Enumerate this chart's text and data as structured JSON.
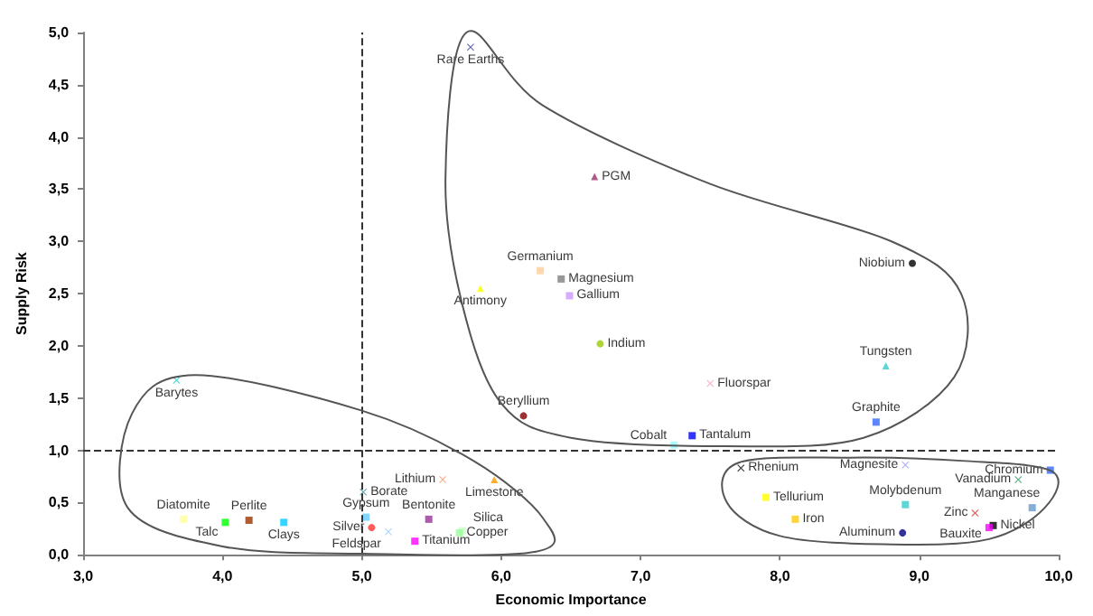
{
  "chart_data": {
    "type": "scatter",
    "xlabel": "Economic Importance",
    "ylabel": "Supply Risk",
    "xlim": [
      3,
      10
    ],
    "ylim": [
      0,
      5
    ],
    "xticks": [
      {
        "value": 3,
        "label": "3,0"
      },
      {
        "value": 4,
        "label": "4,0"
      },
      {
        "value": 5,
        "label": "5,0"
      },
      {
        "value": 6,
        "label": "6,0"
      },
      {
        "value": 7,
        "label": "7,0"
      },
      {
        "value": 8,
        "label": "8,0"
      },
      {
        "value": 9,
        "label": "9,0"
      },
      {
        "value": 10,
        "label": "10,0"
      }
    ],
    "yticks": [
      {
        "value": 0,
        "label": "0,0"
      },
      {
        "value": 0.5,
        "label": "0,5"
      },
      {
        "value": 1,
        "label": "1,0"
      },
      {
        "value": 1.5,
        "label": "1,5"
      },
      {
        "value": 2,
        "label": "2,0"
      },
      {
        "value": 2.5,
        "label": "2,5"
      },
      {
        "value": 3,
        "label": "3,0"
      },
      {
        "value": 3.5,
        "label": "3,5"
      },
      {
        "value": 4,
        "label": "4,0"
      },
      {
        "value": 4.5,
        "label": "4,5"
      },
      {
        "value": 5,
        "label": "5,0"
      }
    ],
    "grid": false,
    "legend": false,
    "ref_lines": [
      {
        "axis": "x",
        "value": 5,
        "line_style": "dashed",
        "color": "#333333"
      },
      {
        "axis": "y",
        "value": 1,
        "line_style": "dashed",
        "color": "#333333"
      }
    ],
    "series": [
      {
        "name": "Rare Earths",
        "color": "#4040a0",
        "marker": "cross",
        "x": [
          5.78
        ],
        "values": [
          4.86
        ]
      },
      {
        "name": "PGM",
        "color": "#993366",
        "marker": "triangle",
        "x": [
          6.67
        ],
        "values": [
          3.62
        ]
      },
      {
        "name": "Germanium",
        "color": "#ffcc99",
        "marker": "square",
        "x": [
          6.28
        ],
        "values": [
          2.72
        ]
      },
      {
        "name": "Magnesium",
        "color": "#808080",
        "marker": "square",
        "x": [
          6.43
        ],
        "values": [
          2.64
        ]
      },
      {
        "name": "Gallium",
        "color": "#cc99ff",
        "marker": "square",
        "x": [
          6.49
        ],
        "values": [
          2.48
        ]
      },
      {
        "name": "Antimony",
        "color": "#ffff00",
        "marker": "triangle",
        "x": [
          5.85
        ],
        "values": [
          2.55
        ]
      },
      {
        "name": "Niobium",
        "color": "#000000",
        "marker": "circle",
        "x": [
          8.95
        ],
        "values": [
          2.79
        ]
      },
      {
        "name": "Indium",
        "color": "#99cc00",
        "marker": "circle",
        "x": [
          6.71
        ],
        "values": [
          2.02
        ]
      },
      {
        "name": "Fluorspar",
        "color": "#ff99cc",
        "marker": "cross",
        "x": [
          7.5
        ],
        "values": [
          1.64
        ]
      },
      {
        "name": "Tungsten",
        "color": "#33cccc",
        "marker": "triangle",
        "x": [
          8.76
        ],
        "values": [
          1.81
        ]
      },
      {
        "name": "Graphite",
        "color": "#3366ff",
        "marker": "square",
        "x": [
          8.69
        ],
        "values": [
          1.27
        ]
      },
      {
        "name": "Tantalum",
        "color": "#0000ff",
        "marker": "square",
        "x": [
          7.37
        ],
        "values": [
          1.14
        ]
      },
      {
        "name": "Cobalt",
        "color": "#99ffff",
        "marker": "square",
        "x": [
          7.24
        ],
        "values": [
          1.05
        ]
      },
      {
        "name": "Beryllium",
        "color": "#800000",
        "marker": "circle",
        "x": [
          6.16
        ],
        "values": [
          1.33
        ]
      },
      {
        "name": "Rhenium",
        "color": "#000000",
        "marker": "cross",
        "x": [
          7.72
        ],
        "values": [
          0.83
        ]
      },
      {
        "name": "Magnesite",
        "color": "#9999ff",
        "marker": "cross",
        "x": [
          8.9
        ],
        "values": [
          0.86
        ]
      },
      {
        "name": "Chromium",
        "color": "#3366ff",
        "marker": "square",
        "x": [
          9.94
        ],
        "values": [
          0.81
        ]
      },
      {
        "name": "Vanadium",
        "color": "#339966",
        "marker": "cross",
        "x": [
          9.71
        ],
        "values": [
          0.72
        ]
      },
      {
        "name": "Tellurium",
        "color": "#ffff00",
        "marker": "square",
        "x": [
          7.9
        ],
        "values": [
          0.55
        ]
      },
      {
        "name": "Molybdenum",
        "color": "#33cccc",
        "marker": "square",
        "x": [
          8.9
        ],
        "values": [
          0.48
        ]
      },
      {
        "name": "Manganese",
        "color": "#6699cc",
        "marker": "square",
        "x": [
          9.81
        ],
        "values": [
          0.45
        ]
      },
      {
        "name": "Zinc",
        "color": "#cc3333",
        "marker": "cross",
        "x": [
          9.4
        ],
        "values": [
          0.4
        ]
      },
      {
        "name": "Iron",
        "color": "#ffcc00",
        "marker": "square",
        "x": [
          8.11
        ],
        "values": [
          0.34
        ]
      },
      {
        "name": "Nickel",
        "color": "#000000",
        "marker": "square",
        "x": [
          9.53
        ],
        "values": [
          0.28
        ]
      },
      {
        "name": "Bauxite",
        "color": "#ff00ff",
        "marker": "square",
        "x": [
          9.5
        ],
        "values": [
          0.26
        ]
      },
      {
        "name": "Aluminum",
        "color": "#000080",
        "marker": "circle",
        "x": [
          8.88
        ],
        "values": [
          0.21
        ]
      },
      {
        "name": "Barytes",
        "color": "#33cccc",
        "marker": "cross",
        "x": [
          3.67
        ],
        "values": [
          1.67
        ]
      },
      {
        "name": "Diatomite",
        "color": "#ffff99",
        "marker": "square",
        "x": [
          3.72
        ],
        "values": [
          0.34
        ]
      },
      {
        "name": "Talc",
        "color": "#00ff00",
        "marker": "square",
        "x": [
          4.02
        ],
        "values": [
          0.31
        ]
      },
      {
        "name": "Perlite",
        "color": "#993300",
        "marker": "square",
        "x": [
          4.19
        ],
        "values": [
          0.33
        ]
      },
      {
        "name": "Clays",
        "color": "#00ccff",
        "marker": "square",
        "x": [
          4.44
        ],
        "values": [
          0.31
        ]
      },
      {
        "name": "Borate",
        "color": "#339999",
        "marker": "cross",
        "x": [
          5.01
        ],
        "values": [
          0.6
        ]
      },
      {
        "name": "Gypsum",
        "color": "#66ccff",
        "marker": "square",
        "x": [
          5.03
        ],
        "values": [
          0.36
        ]
      },
      {
        "name": "Silver",
        "color": "#ff3333",
        "marker": "circle",
        "x": [
          5.07
        ],
        "values": [
          0.26
        ]
      },
      {
        "name": "Feldspar",
        "color": "#99ccff",
        "marker": "cross",
        "x": [
          5.19
        ],
        "values": [
          0.22
        ]
      },
      {
        "name": "Lithium",
        "color": "#ff9966",
        "marker": "cross",
        "x": [
          5.58
        ],
        "values": [
          0.72
        ]
      },
      {
        "name": "Limestone",
        "color": "#ff9900",
        "marker": "triangle",
        "x": [
          5.95
        ],
        "values": [
          0.72
        ]
      },
      {
        "name": "Bentonite",
        "color": "#993399",
        "marker": "square",
        "x": [
          5.48
        ],
        "values": [
          0.34
        ]
      },
      {
        "name": "Titanium",
        "color": "#ff00ff",
        "marker": "square",
        "x": [
          5.38
        ],
        "values": [
          0.13
        ]
      },
      {
        "name": "Silica",
        "color": "#ccffcc",
        "marker": "square",
        "x": [
          5.72
        ],
        "values": [
          0.23
        ]
      },
      {
        "name": "Copper",
        "color": "#99ff99",
        "marker": "square",
        "x": [
          5.7
        ],
        "values": [
          0.21
        ]
      }
    ]
  }
}
